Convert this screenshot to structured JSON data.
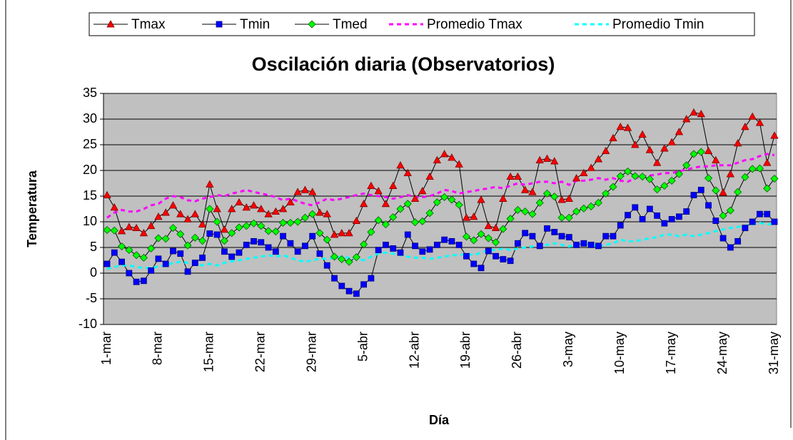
{
  "chart_data": {
    "type": "line",
    "title": "Oscilación diaria (Observatorios)",
    "x_label": "Día",
    "y_label": "Temperatura",
    "categories": [
      "1-mar",
      null,
      null,
      null,
      null,
      null,
      null,
      "8-mar",
      null,
      null,
      null,
      null,
      null,
      null,
      "15-mar",
      null,
      null,
      null,
      null,
      null,
      null,
      "22-mar",
      null,
      null,
      null,
      null,
      null,
      null,
      "29-mar",
      null,
      null,
      null,
      null,
      null,
      null,
      "5-abr",
      null,
      null,
      null,
      null,
      null,
      null,
      "12-abr",
      null,
      null,
      null,
      null,
      null,
      null,
      "19-abr",
      null,
      null,
      null,
      null,
      null,
      null,
      "26-abr",
      null,
      null,
      null,
      null,
      null,
      null,
      "3-may",
      null,
      null,
      null,
      null,
      null,
      null,
      "10-may",
      null,
      null,
      null,
      null,
      null,
      null,
      "17-may",
      null,
      null,
      null,
      null,
      null,
      null,
      "24-may",
      null,
      null,
      null,
      null,
      null,
      null,
      "31-may"
    ],
    "ylim": [
      -10,
      35
    ],
    "yticks": [
      -10,
      -5,
      0,
      5,
      10,
      15,
      20,
      25,
      30,
      35
    ],
    "grid": true,
    "legend": "top",
    "plot_background": "#c0c0c0",
    "series": [
      {
        "name": "Tmax",
        "color": "#ff0000",
        "line_color": "#000000",
        "marker": "triangle",
        "dashed": false,
        "values": [
          15.2,
          12.8,
          8.2,
          9,
          8.8,
          7.8,
          9.2,
          11,
          11.8,
          13.2,
          11.5,
          10.5,
          11.5,
          9.5,
          17.3,
          12.5,
          8.5,
          12.5,
          13.8,
          12.8,
          13.2,
          12.5,
          11.5,
          12,
          12.5,
          13.8,
          15.8,
          16.2,
          15.8,
          11.8,
          11.5,
          7.5,
          7.8,
          7.8,
          10.2,
          13.5,
          17,
          16,
          13.5,
          17,
          21,
          19.5,
          14.5,
          16,
          18.8,
          22,
          23.2,
          22.5,
          21.2,
          10.8,
          11,
          14.3,
          9.2,
          8.8,
          14.5,
          18.8,
          18.8,
          16.2,
          15.8,
          22,
          22.3,
          21.8,
          14.3,
          14.5,
          18.5,
          19.5,
          20.5,
          22.2,
          23.8,
          26.3,
          28.5,
          28.3,
          25,
          27,
          24,
          21.5,
          24.3,
          25.5,
          27.5,
          30,
          31.3,
          31,
          23.8,
          22,
          15.7,
          19.3,
          25.3,
          28.5,
          30.5,
          29.3,
          21.5,
          26.8
        ]
      },
      {
        "name": "Tmin",
        "color": "#0000ff",
        "line_color": "#000000",
        "marker": "square",
        "dashed": false,
        "values": [
          1.8,
          4,
          2.2,
          0,
          -1.7,
          -1.5,
          0.5,
          2.8,
          1.8,
          4.3,
          3.8,
          0.3,
          2,
          3,
          7.7,
          7.5,
          4.2,
          3.2,
          4,
          5.5,
          6.2,
          6,
          5,
          4.2,
          7.2,
          5.8,
          4.2,
          5.3,
          7.2,
          3.8,
          1.5,
          -1,
          -2.5,
          -3.5,
          -4,
          -2.2,
          -1,
          4.5,
          5.5,
          4.8,
          4,
          7.5,
          5.3,
          4.2,
          4.6,
          5.5,
          6.5,
          6.2,
          5.5,
          3.3,
          1.8,
          1,
          4.3,
          3.3,
          2.7,
          2.4,
          5.8,
          7.8,
          7.2,
          5.3,
          8.7,
          8,
          7.2,
          7,
          5.5,
          5.8,
          5.5,
          5.3,
          7.2,
          7.2,
          9.3,
          11.3,
          12.8,
          10.5,
          12.5,
          11.2,
          9.7,
          10.5,
          11,
          12,
          15.2,
          16.2,
          13.2,
          10.2,
          6.8,
          5,
          6.2,
          8.8,
          10,
          11.5,
          11.5,
          10
        ]
      },
      {
        "name": "Tmed",
        "color": "#00ff00",
        "line_color": "#000000",
        "marker": "diamond",
        "dashed": false,
        "values": [
          8.4,
          8.3,
          5.2,
          4.5,
          3.5,
          3,
          4.8,
          6.8,
          6.7,
          8.8,
          7.6,
          5.4,
          6.9,
          6.3,
          12.5,
          10,
          6.3,
          7.8,
          8.9,
          9.2,
          9.7,
          9.2,
          8.2,
          8.1,
          9.8,
          9.8,
          10,
          10.8,
          11.5,
          7.8,
          6.5,
          3.2,
          2.7,
          2.2,
          3.1,
          5.6,
          8,
          10.3,
          9.5,
          10.9,
          12.5,
          13.5,
          9.9,
          10.1,
          11.7,
          13.8,
          14.8,
          14.3,
          13.3,
          7.1,
          6.4,
          7.6,
          6.8,
          6,
          8.6,
          10.6,
          12.3,
          12,
          11.5,
          13.7,
          15.5,
          14.9,
          10.8,
          10.8,
          12,
          12.6,
          13,
          13.7,
          15.5,
          16.8,
          18.9,
          19.8,
          18.9,
          18.8,
          18.3,
          16.3,
          17,
          18,
          19.3,
          21,
          23.2,
          23.6,
          18.5,
          16.1,
          11.2,
          12.2,
          15.8,
          18.7,
          20.3,
          20.4,
          16.5,
          18.4
        ]
      },
      {
        "name": "Promedio Tmax",
        "color": "#ff00ff",
        "line_color": "#ff00ff",
        "marker": "none",
        "dashed": true,
        "values": [
          10.8,
          11.8,
          12.3,
          12,
          12,
          12.5,
          13.2,
          13.5,
          14.5,
          15,
          14.8,
          14.2,
          14,
          14.5,
          14.8,
          15.2,
          15,
          15.5,
          15.8,
          16.2,
          15.8,
          15.5,
          15.2,
          14.8,
          14.2,
          14.5,
          14,
          13.5,
          13.2,
          13.8,
          14.5,
          14.2,
          14.5,
          14.8,
          15.2,
          15.5,
          15.2,
          15,
          14.8,
          14.5,
          14.8,
          15.2,
          14.8,
          14.8,
          15,
          15.5,
          16.2,
          16,
          15.5,
          15.8,
          16,
          16.3,
          16.5,
          16.8,
          16.5,
          17,
          17.5,
          17.2,
          17.5,
          17.8,
          17.8,
          17.5,
          17.8,
          17.2,
          18,
          18,
          18.2,
          18.5,
          18.2,
          18.5,
          18,
          17.8,
          18.5,
          18.8,
          19,
          19.2,
          19.5,
          19.5,
          19.8,
          20.2,
          20.5,
          20.8,
          20.8,
          21,
          21,
          21,
          21.5,
          22,
          22.2,
          22.8,
          23.2,
          23
        ]
      },
      {
        "name": "Promedio Tmin",
        "color": "#00ffff",
        "line_color": "#00ffff",
        "marker": "none",
        "dashed": true,
        "values": [
          0.8,
          1.2,
          1.5,
          1.5,
          1.2,
          1,
          1,
          1.3,
          1.5,
          2,
          2.2,
          2,
          1.8,
          1.5,
          1.8,
          1.5,
          2,
          2.3,
          2.5,
          2.8,
          3,
          3.2,
          3.5,
          3.2,
          3.5,
          3,
          2.5,
          2.2,
          2.5,
          2.8,
          2.8,
          3,
          3.2,
          3,
          2.8,
          2.5,
          3.2,
          3.8,
          4,
          3.8,
          3.5,
          3.2,
          3,
          3,
          2.8,
          3,
          3.2,
          3.5,
          3.5,
          3.8,
          3.5,
          4,
          4.5,
          4.5,
          4.8,
          4.5,
          4.8,
          5,
          5.2,
          5.5,
          5.5,
          5.8,
          5.5,
          5.2,
          5.5,
          5.8,
          5.5,
          5.2,
          5.5,
          5.8,
          6.5,
          6.2,
          6.2,
          6.5,
          6.8,
          7,
          7.5,
          7.5,
          7.2,
          7.5,
          7.2,
          7.5,
          7.8,
          8.2,
          8.5,
          8.8,
          9,
          9.2,
          9.5,
          9.8,
          9.5,
          9.6
        ]
      }
    ]
  }
}
